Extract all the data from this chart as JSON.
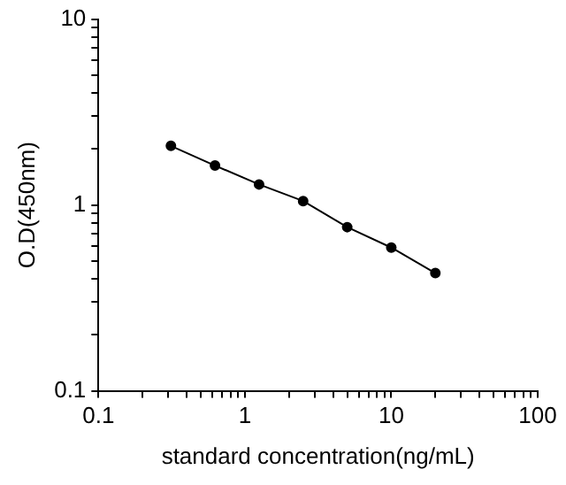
{
  "chart_data": {
    "type": "line",
    "xlabel": "standard concentration(ng/mL)",
    "ylabel": "O.D(450nm)",
    "log": "xy",
    "grid": false,
    "legend": false,
    "marker": "circle",
    "line_style": "solid",
    "x": [
      0.3125,
      0.625,
      1.25,
      2.5,
      5,
      10,
      20
    ],
    "series": [
      {
        "color": "#000000",
        "values": [
          2.08,
          1.63,
          1.29,
          1.05,
          0.76,
          0.59,
          0.43
        ]
      }
    ],
    "xlim": [
      0.1,
      100
    ],
    "ylim": [
      0.1,
      10
    ],
    "xticks": [
      {
        "value": 0.1,
        "label": "0.1"
      },
      {
        "value": 0.2,
        "label": null
      },
      {
        "value": 0.3,
        "label": null
      },
      {
        "value": 0.4,
        "label": null
      },
      {
        "value": 0.5,
        "label": null
      },
      {
        "value": 0.6,
        "label": null
      },
      {
        "value": 0.7,
        "label": null
      },
      {
        "value": 0.8,
        "label": null
      },
      {
        "value": 0.9,
        "label": null
      },
      1,
      {
        "value": 2,
        "label": null
      },
      {
        "value": 3,
        "label": null
      },
      {
        "value": 4,
        "label": null
      },
      {
        "value": 5,
        "label": null
      },
      {
        "value": 6,
        "label": null
      },
      {
        "value": 7,
        "label": null
      },
      {
        "value": 8,
        "label": null
      },
      {
        "value": 9,
        "label": null
      },
      10,
      {
        "value": 20,
        "label": null
      },
      {
        "value": 30,
        "label": null
      },
      {
        "value": 40,
        "label": null
      },
      {
        "value": 50,
        "label": null
      },
      {
        "value": 60,
        "label": null
      },
      {
        "value": 70,
        "label": null
      },
      {
        "value": 80,
        "label": null
      },
      {
        "value": 90,
        "label": null
      },
      100
    ],
    "yticks": [
      {
        "value": 0.1,
        "label": "0.1"
      },
      {
        "value": 0.2,
        "label": null
      },
      {
        "value": 0.3,
        "label": null
      },
      {
        "value": 0.4,
        "label": null
      },
      {
        "value": 0.5,
        "label": null
      },
      {
        "value": 0.6,
        "label": null
      },
      {
        "value": 0.7,
        "label": null
      },
      {
        "value": 0.8,
        "label": null
      },
      {
        "value": 0.9,
        "label": null
      },
      1,
      {
        "value": 2,
        "label": null
      },
      {
        "value": 3,
        "label": null
      },
      {
        "value": 4,
        "label": null
      },
      {
        "value": 5,
        "label": null
      },
      {
        "value": 6,
        "label": null
      },
      {
        "value": 7,
        "label": null
      },
      {
        "value": 8,
        "label": null
      },
      {
        "value": 9,
        "label": null
      },
      10
    ]
  }
}
